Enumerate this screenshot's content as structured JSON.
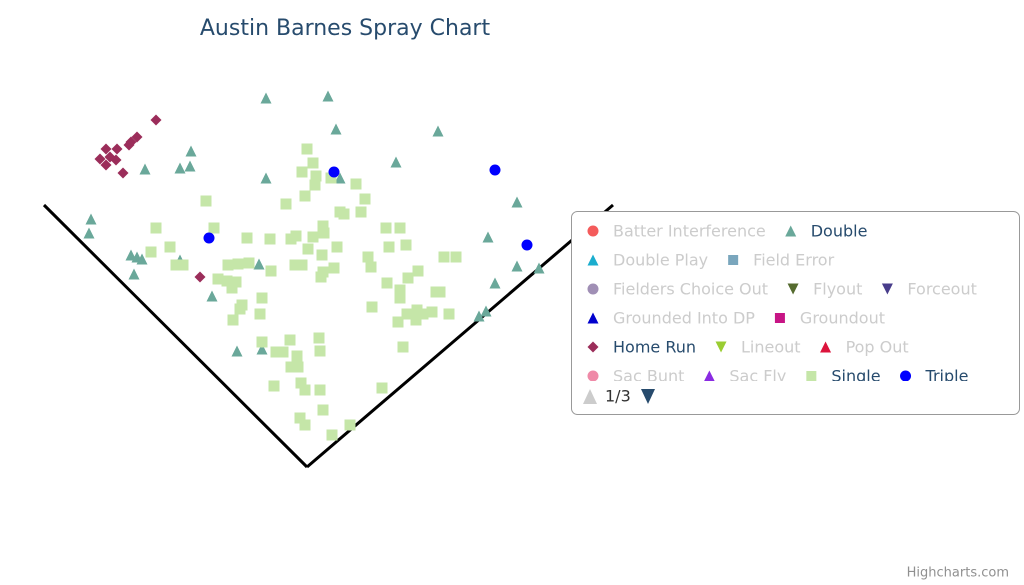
{
  "chart_data": {
    "type": "scatter",
    "title": "Austin Barnes Spray Chart",
    "credits": "Highcharts.com",
    "legend_page": "1/3",
    "xlim": [
      0,
      620
    ],
    "ylim": [
      470,
      0
    ],
    "series": [
      {
        "name": "Batter Interference",
        "color": "#f45b5b",
        "symbol": "circle",
        "visible": false,
        "x": [],
        "y": []
      },
      {
        "name": "Double",
        "color": "#6aa89a",
        "symbol": "triangle",
        "visible": true,
        "x": [
          266,
          328,
          336,
          438,
          191,
          145,
          180,
          190,
          266,
          340,
          396,
          517,
          91,
          89,
          488,
          131,
          137,
          142,
          180,
          259,
          517,
          539,
          134,
          212,
          495,
          486,
          479,
          237,
          262
        ],
        "y": [
          98,
          96,
          129,
          131,
          151,
          169,
          168,
          166,
          178,
          178,
          162,
          202,
          219,
          233,
          237,
          255,
          257,
          259,
          260,
          264,
          266,
          268,
          274,
          296,
          283,
          311,
          316,
          351,
          349
        ]
      },
      {
        "name": "Double Play",
        "color": "#1aadce",
        "symbol": "triangle",
        "visible": false,
        "x": [],
        "y": []
      },
      {
        "name": "Field Error",
        "color": "#7aa6bd",
        "symbol": "square",
        "visible": false,
        "x": [],
        "y": []
      },
      {
        "name": "Fielders Choice Out",
        "color": "#a08fb5",
        "symbol": "circle",
        "visible": false,
        "x": [],
        "y": []
      },
      {
        "name": "Flyout",
        "color": "#556b2f",
        "symbol": "triangle-down",
        "visible": false,
        "x": [],
        "y": []
      },
      {
        "name": "Forceout",
        "color": "#483d8b",
        "symbol": "triangle-down",
        "visible": false,
        "x": [],
        "y": []
      },
      {
        "name": "Grounded Into DP",
        "color": "#0000cd",
        "symbol": "triangle",
        "visible": false,
        "x": [],
        "y": []
      },
      {
        "name": "Groundout",
        "color": "#c71585",
        "symbol": "square",
        "visible": false,
        "x": [],
        "y": []
      },
      {
        "name": "Home Run",
        "color": "#9b2d5a",
        "symbol": "diamond",
        "visible": true,
        "x": [
          156,
          137,
          131,
          129,
          106,
          117,
          100,
          106,
          116,
          110,
          123,
          200
        ],
        "y": [
          120,
          137,
          142,
          145,
          149,
          149,
          159,
          165,
          160,
          157,
          173,
          277
        ]
      },
      {
        "name": "Lineout",
        "color": "#9acd32",
        "symbol": "triangle-down",
        "visible": false,
        "x": [],
        "y": []
      },
      {
        "name": "Pop Out",
        "color": "#dc143c",
        "symbol": "triangle",
        "visible": false,
        "x": [],
        "y": []
      },
      {
        "name": "Sac Bunt",
        "color": "#ef8aa8",
        "symbol": "circle",
        "visible": false,
        "x": [],
        "y": []
      },
      {
        "name": "Sac Fly",
        "color": "#8a2be2",
        "symbol": "triangle",
        "visible": false,
        "x": [],
        "y": []
      },
      {
        "name": "Single",
        "color": "#c5e6a8",
        "symbol": "square",
        "visible": true,
        "x": [
          307,
          313,
          302,
          316,
          315,
          331,
          356,
          305,
          365,
          286,
          206,
          361,
          340,
          344,
          156,
          214,
          323,
          324,
          296,
          291,
          313,
          270,
          386,
          400,
          170,
          151,
          247,
          308,
          406,
          389,
          337,
          322,
          444,
          456,
          368,
          371,
          295,
          302,
          334,
          249,
          228,
          238,
          176,
          183,
          271,
          218,
          227,
          232,
          236,
          321,
          323,
          418,
          408,
          400,
          400,
          436,
          440,
          387,
          262,
          242,
          240,
          372,
          417,
          407,
          423,
          432,
          398,
          416,
          260,
          233,
          449,
          290,
          319,
          262,
          297,
          320,
          403,
          276,
          283,
          298,
          291,
          301,
          274,
          320,
          382,
          305,
          323,
          300,
          305,
          350,
          332
        ],
        "y": [
          149,
          163,
          172,
          176,
          185,
          178,
          184,
          196,
          199,
          204,
          201,
          212,
          212,
          214,
          228,
          228,
          226,
          233,
          236,
          239,
          237,
          239,
          228,
          228,
          247,
          252,
          238,
          249,
          245,
          247,
          247,
          255,
          257,
          257,
          257,
          267,
          265,
          265,
          268,
          263,
          265,
          264,
          265,
          265,
          271,
          279,
          281,
          288,
          282,
          277,
          272,
          271,
          278,
          290,
          298,
          292,
          292,
          283,
          298,
          305,
          309,
          307,
          310,
          314,
          314,
          312,
          322,
          320,
          314,
          320,
          314,
          340,
          338,
          342,
          356,
          351,
          347,
          352,
          352,
          367,
          367,
          383,
          386,
          390,
          388,
          390,
          410,
          418,
          425,
          425,
          435
        ]
      },
      {
        "name": "Triple",
        "color": "#0000ff",
        "symbol": "circle",
        "visible": true,
        "x": [
          334,
          495,
          209,
          527
        ],
        "y": [
          172,
          170,
          238,
          245
        ]
      }
    ]
  }
}
